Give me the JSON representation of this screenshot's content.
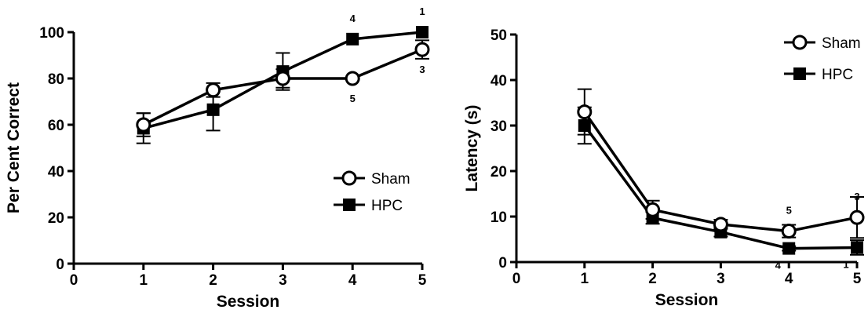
{
  "chart_data": [
    {
      "type": "line",
      "xlabel": "Session",
      "ylabel": "Per Cent Correct",
      "xlim": [
        0,
        5
      ],
      "ylim": [
        0,
        100
      ],
      "xticks": [
        0,
        1,
        2,
        3,
        4,
        5
      ],
      "yticks": [
        0,
        20,
        40,
        60,
        80,
        100
      ],
      "legend": "right",
      "grid": false,
      "series": [
        {
          "name": "Sham",
          "marker": "open-circle",
          "x": [
            1,
            2,
            3,
            4,
            5
          ],
          "values": [
            60,
            75,
            80,
            80,
            92.5
          ],
          "errors": [
            5,
            3,
            4,
            0,
            4
          ]
        },
        {
          "name": "HPC",
          "marker": "filled-square",
          "x": [
            1,
            2,
            3,
            4,
            5
          ],
          "values": [
            58.5,
            66.5,
            83,
            97,
            100
          ],
          "errors": [
            6.5,
            9,
            8,
            0,
            0
          ]
        }
      ],
      "annotations": [
        {
          "text": "4",
          "x": 4,
          "y": 97,
          "pos": "above"
        },
        {
          "text": "1",
          "x": 5,
          "y": 100,
          "pos": "above"
        },
        {
          "text": "5",
          "x": 4,
          "y": 80,
          "pos": "below"
        },
        {
          "text": "3",
          "x": 5,
          "y": 92.5,
          "pos": "below"
        }
      ]
    },
    {
      "type": "line",
      "xlabel": "Session",
      "ylabel": "Latency (s)",
      "xlim": [
        0,
        5
      ],
      "ylim": [
        0,
        50
      ],
      "xticks": [
        0,
        1,
        2,
        3,
        4,
        5
      ],
      "yticks": [
        0,
        10,
        20,
        30,
        40,
        50
      ],
      "legend": "top-right",
      "grid": false,
      "series": [
        {
          "name": "Sham",
          "marker": "open-circle",
          "x": [
            1,
            2,
            3,
            4,
            5
          ],
          "values": [
            33,
            11.5,
            8.3,
            6.8,
            9.8
          ],
          "errors": [
            5,
            2,
            1,
            1.4,
            4.5
          ]
        },
        {
          "name": "HPC",
          "marker": "filled-square",
          "x": [
            1,
            2,
            3,
            4,
            5
          ],
          "values": [
            30,
            9.7,
            6.6,
            3,
            3.2
          ],
          "errors": [
            4,
            1.3,
            1,
            0.5,
            1.6
          ]
        }
      ],
      "annotations": [
        {
          "text": "5",
          "x": 4,
          "y": 6.8,
          "pos": "above"
        },
        {
          "text": "3",
          "x": 5,
          "y": 9.8,
          "pos": "above"
        },
        {
          "text": "4",
          "x": 4,
          "y": 3,
          "pos": "below-left"
        },
        {
          "text": "1",
          "x": 5,
          "y": 3.2,
          "pos": "below-left"
        }
      ]
    }
  ]
}
